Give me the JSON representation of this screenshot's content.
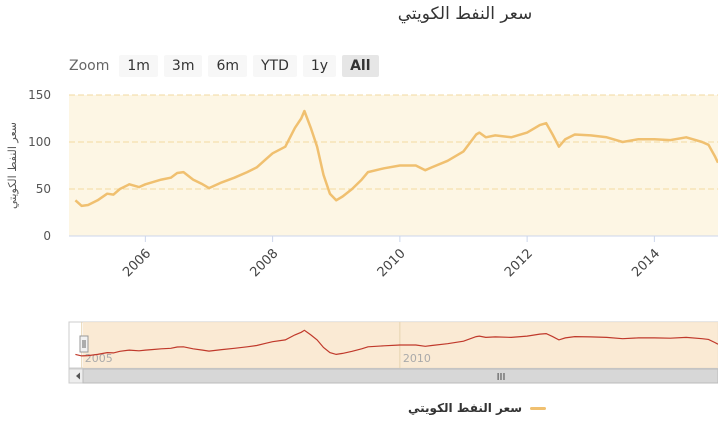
{
  "page": {
    "title": "سعر النفط الكويتي"
  },
  "zoom": {
    "label": "Zoom",
    "buttons": [
      "1m",
      "3m",
      "6m",
      "YTD",
      "1y",
      "All"
    ],
    "active": "All"
  },
  "navigator": {
    "labels": [
      "2005",
      "2010"
    ],
    "scroll_label": "III"
  },
  "colors": {
    "main_line": "#f0c070",
    "main_band": "#fdf6e4",
    "nav_line": "#c0392b",
    "nav_band": "#f9e6cc"
  },
  "chart_data": {
    "type": "line",
    "title": "سعر النفط الكويتي",
    "ylabel": "سعر النفط الكويتي",
    "xlabel": "",
    "ylim": [
      0,
      150
    ],
    "yticks": [
      0,
      50,
      100,
      150
    ],
    "xticks": [
      2006,
      2008,
      2010,
      2012,
      2014
    ],
    "xlim": [
      2004.8,
      2015.0
    ],
    "legend": "bottom-center",
    "grid": true,
    "series": [
      {
        "name": "سعر النفط الكويتي",
        "x": [
          2004.9,
          2005.0,
          2005.1,
          2005.25,
          2005.4,
          2005.5,
          2005.6,
          2005.75,
          2005.9,
          2006.0,
          2006.1,
          2006.25,
          2006.4,
          2006.5,
          2006.6,
          2006.75,
          2006.9,
          2007.0,
          2007.2,
          2007.4,
          2007.6,
          2007.75,
          2007.9,
          2008.0,
          2008.2,
          2008.35,
          2008.45,
          2008.5,
          2008.6,
          2008.7,
          2008.8,
          2008.9,
          2009.0,
          2009.1,
          2009.25,
          2009.4,
          2009.5,
          2009.75,
          2010.0,
          2010.25,
          2010.4,
          2010.5,
          2010.75,
          2011.0,
          2011.2,
          2011.25,
          2011.35,
          2011.5,
          2011.75,
          2012.0,
          2012.2,
          2012.3,
          2012.4,
          2012.5,
          2012.6,
          2012.75,
          2013.0,
          2013.25,
          2013.5,
          2013.75,
          2014.0,
          2014.25,
          2014.5,
          2014.75,
          2014.85,
          2014.95,
          2015.0
        ],
        "y": [
          38,
          32,
          33,
          38,
          45,
          44,
          50,
          55,
          52,
          55,
          57,
          60,
          62,
          67,
          68,
          60,
          55,
          51,
          57,
          62,
          68,
          73,
          82,
          88,
          95,
          115,
          125,
          133,
          115,
          95,
          65,
          45,
          38,
          42,
          50,
          60,
          68,
          72,
          75,
          75,
          70,
          73,
          80,
          90,
          108,
          110,
          105,
          107,
          105,
          110,
          118,
          120,
          108,
          95,
          103,
          108,
          107,
          105,
          100,
          103,
          103,
          102,
          105,
          100,
          97,
          85,
          78
        ]
      }
    ]
  }
}
